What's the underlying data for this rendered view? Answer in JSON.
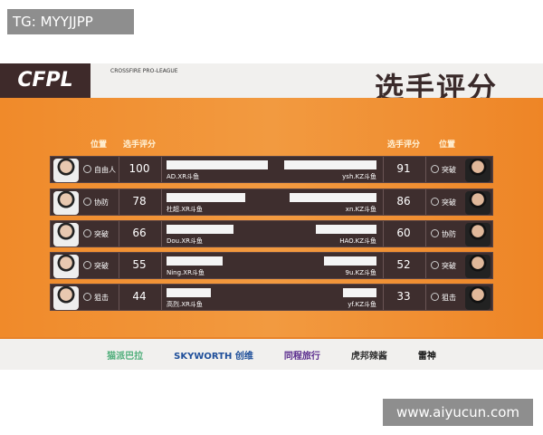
{
  "watermarks": {
    "top_left": "TG: MYYJJPP",
    "bottom_right": "www.aiyucun.com"
  },
  "header": {
    "logo": "CFPL",
    "league": "CROSSFIRE PRO-LEAGUE",
    "title": "选手评分"
  },
  "columns": {
    "left_position": "位置",
    "left_score": "选手评分",
    "right_score": "选手评分",
    "right_position": "位置"
  },
  "rows": [
    {
      "left": {
        "position": "自由人",
        "score": 100,
        "name": "AD.XR斗鱼"
      },
      "right": {
        "position": "突破",
        "score": 91,
        "name": "ysh.KZ斗鱼"
      }
    },
    {
      "left": {
        "position": "协防",
        "score": 78,
        "name": "杜超.XR斗鱼"
      },
      "right": {
        "position": "突破",
        "score": 86,
        "name": "xn.KZ斗鱼"
      }
    },
    {
      "left": {
        "position": "突破",
        "score": 66,
        "name": "Dou.XR斗鱼"
      },
      "right": {
        "position": "协防",
        "score": 60,
        "name": "HAO.KZ斗鱼"
      }
    },
    {
      "left": {
        "position": "突破",
        "score": 55,
        "name": "Ning.XR斗鱼"
      },
      "right": {
        "position": "突破",
        "score": 52,
        "name": "9u.KZ斗鱼"
      }
    },
    {
      "left": {
        "position": "狙击",
        "score": 44,
        "name": "高烈.XR斗鱼"
      },
      "right": {
        "position": "狙击",
        "score": 33,
        "name": "yf.KZ斗鱼"
      }
    }
  ],
  "sponsors": [
    {
      "name": "猫派巴拉",
      "color": "#4fae7a"
    },
    {
      "name": "SKYWORTH 创维",
      "color": "#1f4f9a"
    },
    {
      "name": "同程旅行",
      "color": "#5b2d8e"
    },
    {
      "name": "虎邦辣酱",
      "color": "#333333"
    },
    {
      "name": "雷神",
      "color": "#111111"
    }
  ],
  "colors": {
    "accent": "#f08a2a",
    "panel": "#3e2e2e"
  }
}
